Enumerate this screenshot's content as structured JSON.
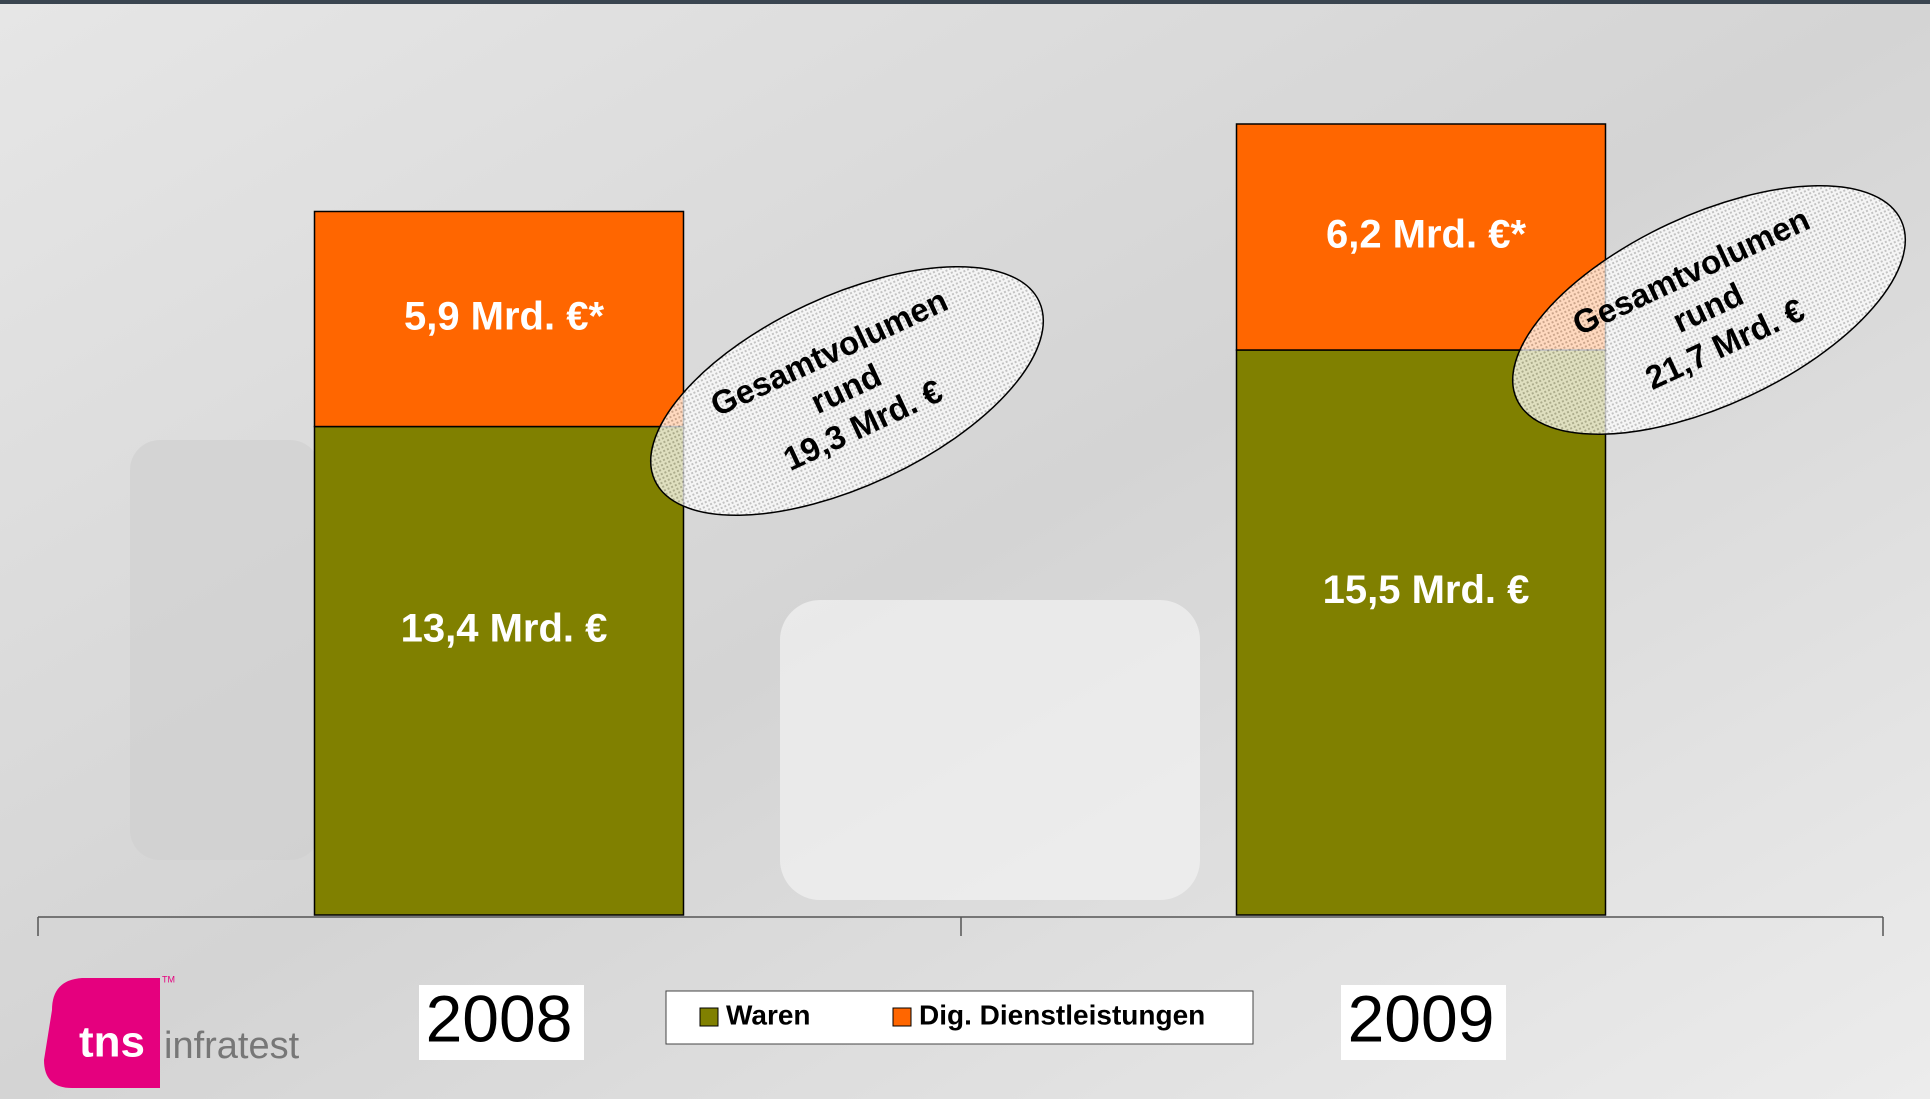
{
  "chart_data": {
    "type": "stacked_bar",
    "categories": [
      "2008",
      "2009"
    ],
    "series": [
      {
        "name": "Waren",
        "color": "#808000",
        "values": [
          13.4,
          15.5
        ],
        "value_labels": [
          "13,4 Mrd. €",
          "15,5  Mrd. €"
        ]
      },
      {
        "name": "Dig. Dienstleistungen",
        "color": "#ff6600",
        "values": [
          5.9,
          6.2
        ],
        "value_labels": [
          "5,9 Mrd. €*",
          "6,2 Mrd. €*"
        ]
      }
    ],
    "annotations": [
      {
        "lines": [
          "Gesamtvolumen",
          "rund",
          "19,3 Mrd. €"
        ]
      },
      {
        "lines": [
          "Gesamtvolumen",
          "rund",
          "21,7  Mrd. €"
        ]
      }
    ]
  },
  "logo": {
    "brand": "tns",
    "name": "infratest",
    "mark": "TM"
  }
}
